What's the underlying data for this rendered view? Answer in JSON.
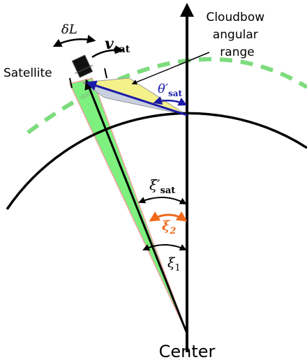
{
  "labels": {
    "range": [
      "Cloudbow",
      "angular",
      "range"
    ],
    "satellite": "Satellite",
    "center": "Center",
    "delta_l": "δL",
    "v_sat": {
      "symbol": "v",
      "sub": "sat"
    },
    "theta_sat": {
      "symbol": "θ′",
      "sub": "sat"
    },
    "xi_sat": {
      "symbol": "ξ′",
      "sub": "sat"
    },
    "xi_2": {
      "symbol": "ξ",
      "sub": "2"
    },
    "xi_1": {
      "symbol": "ξ",
      "sub": "1"
    }
  }
}
